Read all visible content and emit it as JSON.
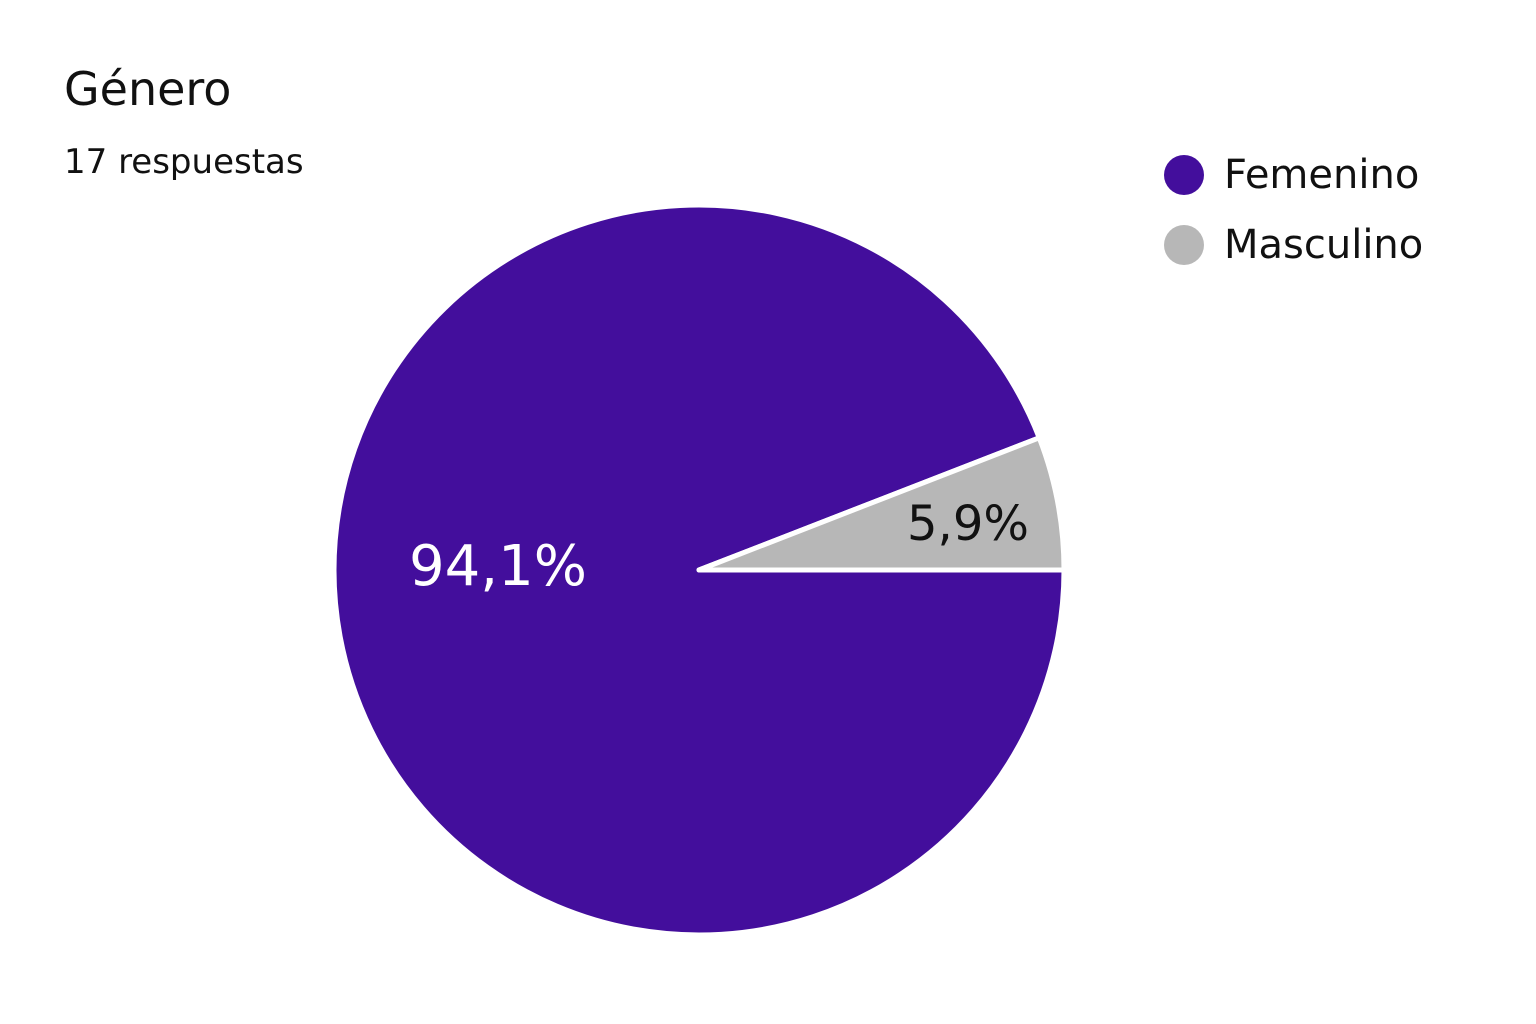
{
  "chart_data": {
    "type": "pie",
    "title": "Género",
    "subtitle": "17 respuestas",
    "legend_position": "top-right",
    "slices": [
      {
        "name": "Femenino",
        "value": 94.1,
        "label": "94,1%",
        "color": "#430e9c"
      },
      {
        "name": "Masculino",
        "value": 5.9,
        "label": "5,9%",
        "color": "#b7b7b7"
      }
    ]
  }
}
